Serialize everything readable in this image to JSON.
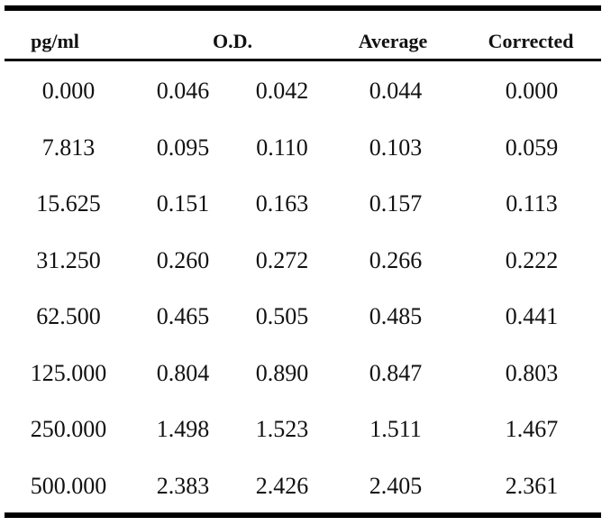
{
  "headers": {
    "pgml": "pg/ml",
    "od": "O.D.",
    "average": "Average",
    "corrected": "Corrected"
  },
  "rows": [
    {
      "pgml": "0.000",
      "od1": "0.046",
      "od2": "0.042",
      "average": "0.044",
      "corrected": "0.000"
    },
    {
      "pgml": "7.813",
      "od1": "0.095",
      "od2": "0.110",
      "average": "0.103",
      "corrected": "0.059"
    },
    {
      "pgml": "15.625",
      "od1": "0.151",
      "od2": "0.163",
      "average": "0.157",
      "corrected": "0.113"
    },
    {
      "pgml": "31.250",
      "od1": "0.260",
      "od2": "0.272",
      "average": "0.266",
      "corrected": "0.222"
    },
    {
      "pgml": "62.500",
      "od1": "0.465",
      "od2": "0.505",
      "average": "0.485",
      "corrected": "0.441"
    },
    {
      "pgml": "125.000",
      "od1": "0.804",
      "od2": "0.890",
      "average": "0.847",
      "corrected": "0.803"
    },
    {
      "pgml": "250.000",
      "od1": "1.498",
      "od2": "1.523",
      "average": "1.511",
      "corrected": "1.467"
    },
    {
      "pgml": "500.000",
      "od1": "2.383",
      "od2": "2.426",
      "average": "2.405",
      "corrected": "2.361"
    }
  ]
}
